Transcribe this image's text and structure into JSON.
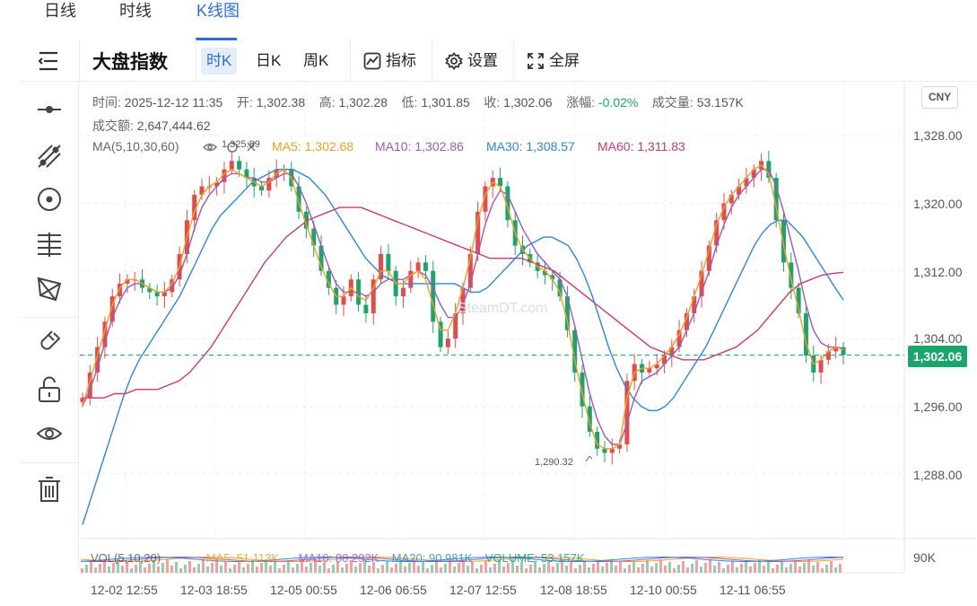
{
  "top_tabs": [
    {
      "label": "日线"
    },
    {
      "label": "时线"
    },
    {
      "label": "K线图"
    }
  ],
  "toolbar": {
    "title": "大盘指数",
    "periods": [
      "时K",
      "日K",
      "周K"
    ],
    "indicator_label": "指标",
    "settings_label": "设置",
    "fullscreen_label": "全屏"
  },
  "info": {
    "time_label": "时间:",
    "time": "2025-12-12 11:35",
    "open_label": "开:",
    "open": "1,302.38",
    "high_label": "高:",
    "high": "1,302.28",
    "low_label": "低:",
    "low": "1,301.85",
    "close_label": "收:",
    "close": "1,302.06",
    "change_label": "涨幅:",
    "change": "-0.02%",
    "volume_label": "成交量:",
    "volume": "53.157K",
    "turnover_label": "成交额:",
    "turnover": "2,647,444.62",
    "ma_title": "MA(5,10,30,60)",
    "ma5": "MA5: 1,302.68",
    "ma10": "MA10: 1,302.86",
    "ma30": "MA30: 1,308.57",
    "ma60": "MA60: 1,311.83"
  },
  "volume_legend": {
    "title": "VOL(5,10,20)",
    "ma5": "MA5: 51.113K",
    "ma10": "MA10: 80.292K",
    "ma20": "MA20: 90.981K",
    "vol": "VOLUME: 53.157K"
  },
  "currency": "CNY",
  "last_price_label": "1,302.06",
  "low_marker": "1,290.32",
  "high_marker": "1,325.89",
  "watermark": "SteamDT.com",
  "colors": {
    "up": "#e64b4b",
    "down": "#1aa56c",
    "ma5": "#f0a020",
    "ma10": "#9b59b6",
    "ma30": "#2f86d4",
    "ma60": "#c83a6e",
    "accent": "#2b6fd6"
  },
  "chart_data": {
    "type": "candlestick",
    "y_ticks": [
      "1,328.00",
      "1,320.00",
      "1,312.00",
      "1,304.00",
      "1,296.00",
      "1,288.00"
    ],
    "y_tick_values": [
      1328,
      1320,
      1312,
      1304,
      1296,
      1288
    ],
    "ylim": [
      1284,
      1334
    ],
    "x_ticks": [
      "12-02 12:55",
      "12-03 18:55",
      "12-05 00:55",
      "12-06 06:55",
      "12-07 12:55",
      "12-08 18:55",
      "12-10 00:55",
      "12-11 06:55"
    ],
    "volume_axis_label": "90K",
    "last_price": 1302.06,
    "close_series": [
      1297,
      1300,
      1303,
      1306,
      1309,
      1310.5,
      1311,
      1311,
      1310,
      1309.5,
      1309,
      1309.5,
      1311,
      1314,
      1318,
      1321,
      1322,
      1322,
      1322.5,
      1324,
      1325,
      1324,
      1323,
      1322,
      1321.5,
      1323,
      1324,
      1324,
      1322,
      1319,
      1317,
      1315,
      1312,
      1310,
      1308,
      1309,
      1311,
      1308,
      1307,
      1311,
      1314,
      1312,
      1309,
      1310,
      1312,
      1313,
      1312,
      1306,
      1303,
      1304,
      1307,
      1310,
      1314,
      1319,
      1322,
      1323,
      1322,
      1318,
      1315,
      1314,
      1313,
      1312,
      1311.5,
      1311,
      1309,
      1305,
      1300,
      1296,
      1293,
      1291,
      1290.5,
      1291,
      1291.5,
      1299,
      1301,
      1300,
      1300.5,
      1301,
      1302,
      1303,
      1305,
      1307,
      1309,
      1312,
      1315,
      1318,
      1320,
      1321,
      1322,
      1323,
      1324,
      1325,
      1323,
      1318,
      1313,
      1310,
      1307,
      1302,
      1300,
      1301.5,
      1302.5,
      1303,
      1302.06
    ],
    "ma5": [
      1296,
      1299,
      1302,
      1305,
      1308,
      1310,
      1311,
      1311,
      1310.5,
      1310,
      1309.5,
      1309.5,
      1310.5,
      1312.5,
      1316,
      1319,
      1321,
      1322,
      1322.5,
      1323.5,
      1324,
      1323.5,
      1323,
      1322.5,
      1322,
      1322.5,
      1323.5,
      1324,
      1323,
      1320,
      1317.5,
      1315,
      1312.5,
      1310.5,
      1309,
      1309,
      1310,
      1309,
      1308.5,
      1310,
      1312,
      1312,
      1310.5,
      1310.5,
      1311.5,
      1312,
      1311,
      1308,
      1305,
      1305,
      1307,
      1310,
      1313.5,
      1318,
      1321,
      1322.5,
      1322,
      1319.5,
      1316.5,
      1314.5,
      1313.5,
      1312.5,
      1312,
      1311,
      1309.5,
      1306,
      1301.5,
      1297.5,
      1294,
      1291.5,
      1291,
      1291,
      1291.5,
      1297,
      1300,
      1300.5,
      1300.5,
      1301,
      1302,
      1303,
      1304.5,
      1306.5,
      1309,
      1311.5,
      1314.5,
      1317.5,
      1319.5,
      1321,
      1322,
      1323,
      1324,
      1324.5,
      1323.5,
      1319.5,
      1315,
      1311,
      1307.5,
      1303.5,
      1301,
      1301.5,
      1302.5,
      1303,
      1302.68
    ],
    "ma10": [
      1296,
      1298,
      1300.5,
      1303.5,
      1306.5,
      1308.5,
      1310,
      1310.5,
      1310.5,
      1310,
      1309.5,
      1309.5,
      1310,
      1311.5,
      1314,
      1317,
      1319.5,
      1321,
      1322,
      1323,
      1323.5,
      1323.5,
      1323,
      1323,
      1322.5,
      1322.5,
      1323,
      1323.5,
      1323.5,
      1322,
      1320,
      1317.5,
      1315,
      1312.5,
      1310.5,
      1309.5,
      1309.5,
      1309.5,
      1309,
      1309.5,
      1310.5,
      1311,
      1311,
      1311,
      1311.5,
      1312,
      1311.5,
      1310,
      1308,
      1306.5,
      1306.5,
      1308,
      1310.5,
      1314,
      1317.5,
      1320,
      1321.5,
      1321,
      1319,
      1317,
      1315.5,
      1314,
      1313,
      1312,
      1311,
      1309,
      1305.5,
      1301.5,
      1297.5,
      1294.5,
      1292.5,
      1291.5,
      1291.5,
      1294,
      1297,
      1299,
      1299.5,
      1300,
      1301,
      1302,
      1303,
      1305,
      1307,
      1309.5,
      1312,
      1315,
      1317.5,
      1319.5,
      1321,
      1322,
      1323,
      1324,
      1324,
      1322,
      1319,
      1315.5,
      1312,
      1308,
      1305,
      1303.5,
      1303,
      1303,
      1302.86
    ],
    "ma30": [
      1282,
      1285,
      1288,
      1291,
      1294,
      1297,
      1299.5,
      1301.5,
      1303,
      1304.5,
      1306,
      1307.5,
      1309,
      1311,
      1313,
      1315,
      1317,
      1318.5,
      1319.5,
      1320.5,
      1321.5,
      1322.5,
      1323,
      1323.5,
      1324,
      1324,
      1324,
      1323.5,
      1323,
      1322,
      1321,
      1319.5,
      1318,
      1316.5,
      1315,
      1313.5,
      1312.5,
      1311.5,
      1311,
      1310.5,
      1310.5,
      1310.5,
      1310.5,
      1310.5,
      1310.5,
      1310.5,
      1310.5,
      1310,
      1309.5,
      1309.5,
      1310,
      1311,
      1312,
      1313,
      1314,
      1315,
      1315.5,
      1316,
      1316,
      1315.5,
      1315,
      1313.5,
      1311.5,
      1309,
      1306,
      1303,
      1300.5,
      1298.5,
      1297,
      1296,
      1295.5,
      1295.5,
      1296,
      1297,
      1298.5,
      1300,
      1301.5,
      1303,
      1305,
      1307,
      1309,
      1311,
      1313,
      1315,
      1316.5,
      1317.5,
      1318,
      1318,
      1317,
      1316,
      1314.5,
      1313,
      1311.5,
      1310,
      1308.57
    ],
    "ma60": [
      1297,
      1297,
      1297,
      1297.5,
      1297.5,
      1298,
      1298,
      1298,
      1298.5,
      1299,
      1300,
      1301.5,
      1303,
      1305,
      1307,
      1309,
      1311,
      1313,
      1314.5,
      1316,
      1317,
      1318,
      1318.5,
      1319,
      1319.5,
      1319.5,
      1319.5,
      1319,
      1318.5,
      1318,
      1317.5,
      1317,
      1316.5,
      1316,
      1315.5,
      1315,
      1314.5,
      1314,
      1313.5,
      1313.5,
      1313.5,
      1313.5,
      1313,
      1312.5,
      1312,
      1311,
      1310,
      1309,
      1308,
      1307,
      1306,
      1305,
      1304,
      1303,
      1302.5,
      1302,
      1301.5,
      1301.5,
      1301.5,
      1302,
      1302.5,
      1303,
      1304,
      1305,
      1306.5,
      1308,
      1309.5,
      1310.5,
      1311,
      1311.5,
      1311.7,
      1311.83
    ]
  }
}
